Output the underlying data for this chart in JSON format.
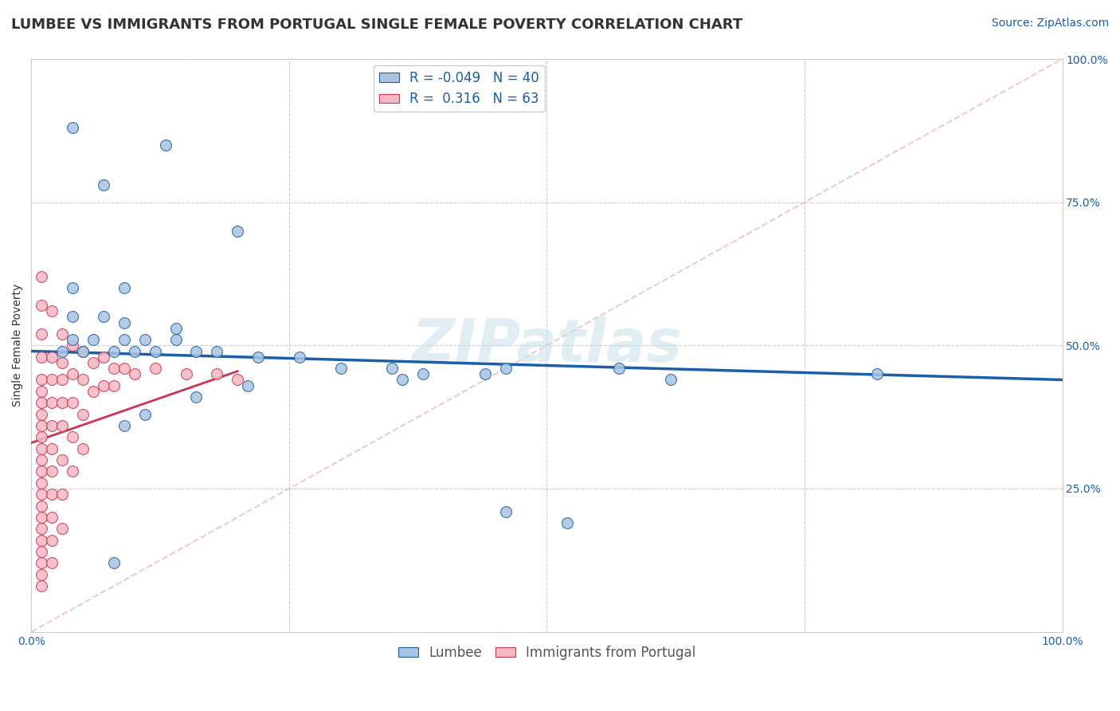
{
  "title": "LUMBEE VS IMMIGRANTS FROM PORTUGAL SINGLE FEMALE POVERTY CORRELATION CHART",
  "source": "Source: ZipAtlas.com",
  "ylabel": "Single Female Poverty",
  "xlabel": "",
  "watermark": "ZIPatlas",
  "xlim": [
    0,
    1.0
  ],
  "ylim": [
    0,
    1.0
  ],
  "background_color": "#ffffff",
  "grid_color": "#cccccc",
  "legend_entries": [
    {
      "label": "Lumbee",
      "color": "#aac4e0",
      "R": "-0.049",
      "N": "40"
    },
    {
      "label": "Immigrants from Portugal",
      "color": "#f4b8c1",
      "R": "0.316",
      "N": "63"
    }
  ],
  "lumbee_scatter": [
    [
      0.04,
      0.88
    ],
    [
      0.13,
      0.85
    ],
    [
      0.07,
      0.78
    ],
    [
      0.2,
      0.7
    ],
    [
      0.04,
      0.6
    ],
    [
      0.09,
      0.6
    ],
    [
      0.04,
      0.55
    ],
    [
      0.07,
      0.55
    ],
    [
      0.09,
      0.54
    ],
    [
      0.14,
      0.53
    ],
    [
      0.04,
      0.51
    ],
    [
      0.06,
      0.51
    ],
    [
      0.09,
      0.51
    ],
    [
      0.11,
      0.51
    ],
    [
      0.14,
      0.51
    ],
    [
      0.03,
      0.49
    ],
    [
      0.05,
      0.49
    ],
    [
      0.08,
      0.49
    ],
    [
      0.1,
      0.49
    ],
    [
      0.12,
      0.49
    ],
    [
      0.16,
      0.49
    ],
    [
      0.18,
      0.49
    ],
    [
      0.22,
      0.48
    ],
    [
      0.26,
      0.48
    ],
    [
      0.3,
      0.46
    ],
    [
      0.35,
      0.46
    ],
    [
      0.21,
      0.43
    ],
    [
      0.38,
      0.45
    ],
    [
      0.44,
      0.45
    ],
    [
      0.36,
      0.44
    ],
    [
      0.46,
      0.46
    ],
    [
      0.57,
      0.46
    ],
    [
      0.62,
      0.44
    ],
    [
      0.82,
      0.45
    ],
    [
      0.46,
      0.21
    ],
    [
      0.52,
      0.19
    ],
    [
      0.08,
      0.12
    ],
    [
      0.16,
      0.41
    ],
    [
      0.11,
      0.38
    ],
    [
      0.09,
      0.36
    ]
  ],
  "portugal_scatter": [
    [
      0.01,
      0.62
    ],
    [
      0.01,
      0.57
    ],
    [
      0.01,
      0.52
    ],
    [
      0.01,
      0.48
    ],
    [
      0.01,
      0.44
    ],
    [
      0.01,
      0.42
    ],
    [
      0.01,
      0.4
    ],
    [
      0.01,
      0.38
    ],
    [
      0.01,
      0.36
    ],
    [
      0.01,
      0.34
    ],
    [
      0.01,
      0.32
    ],
    [
      0.01,
      0.3
    ],
    [
      0.01,
      0.28
    ],
    [
      0.01,
      0.26
    ],
    [
      0.01,
      0.24
    ],
    [
      0.01,
      0.22
    ],
    [
      0.01,
      0.2
    ],
    [
      0.01,
      0.18
    ],
    [
      0.01,
      0.16
    ],
    [
      0.01,
      0.14
    ],
    [
      0.01,
      0.12
    ],
    [
      0.01,
      0.1
    ],
    [
      0.01,
      0.08
    ],
    [
      0.02,
      0.56
    ],
    [
      0.02,
      0.48
    ],
    [
      0.02,
      0.44
    ],
    [
      0.02,
      0.4
    ],
    [
      0.02,
      0.36
    ],
    [
      0.02,
      0.32
    ],
    [
      0.02,
      0.28
    ],
    [
      0.02,
      0.24
    ],
    [
      0.02,
      0.2
    ],
    [
      0.02,
      0.16
    ],
    [
      0.02,
      0.12
    ],
    [
      0.03,
      0.52
    ],
    [
      0.03,
      0.47
    ],
    [
      0.03,
      0.44
    ],
    [
      0.03,
      0.4
    ],
    [
      0.03,
      0.36
    ],
    [
      0.03,
      0.3
    ],
    [
      0.03,
      0.24
    ],
    [
      0.03,
      0.18
    ],
    [
      0.04,
      0.5
    ],
    [
      0.04,
      0.45
    ],
    [
      0.04,
      0.4
    ],
    [
      0.04,
      0.34
    ],
    [
      0.04,
      0.28
    ],
    [
      0.05,
      0.49
    ],
    [
      0.05,
      0.44
    ],
    [
      0.05,
      0.38
    ],
    [
      0.05,
      0.32
    ],
    [
      0.06,
      0.47
    ],
    [
      0.06,
      0.42
    ],
    [
      0.07,
      0.48
    ],
    [
      0.07,
      0.43
    ],
    [
      0.08,
      0.46
    ],
    [
      0.08,
      0.43
    ],
    [
      0.09,
      0.46
    ],
    [
      0.1,
      0.45
    ],
    [
      0.12,
      0.46
    ],
    [
      0.15,
      0.45
    ],
    [
      0.18,
      0.45
    ],
    [
      0.2,
      0.44
    ]
  ],
  "lumbee_line": [
    [
      0.0,
      0.49
    ],
    [
      1.0,
      0.44
    ]
  ],
  "portugal_line": [
    [
      0.0,
      0.33
    ],
    [
      0.2,
      0.455
    ]
  ],
  "lumbee_line_color": "#1a5fa8",
  "portugal_line_color": "#cc3355",
  "diagonal_color": "#f0c8d0",
  "title_fontsize": 13,
  "source_fontsize": 10,
  "axis_label_fontsize": 10,
  "tick_fontsize": 10,
  "legend_fontsize": 12
}
